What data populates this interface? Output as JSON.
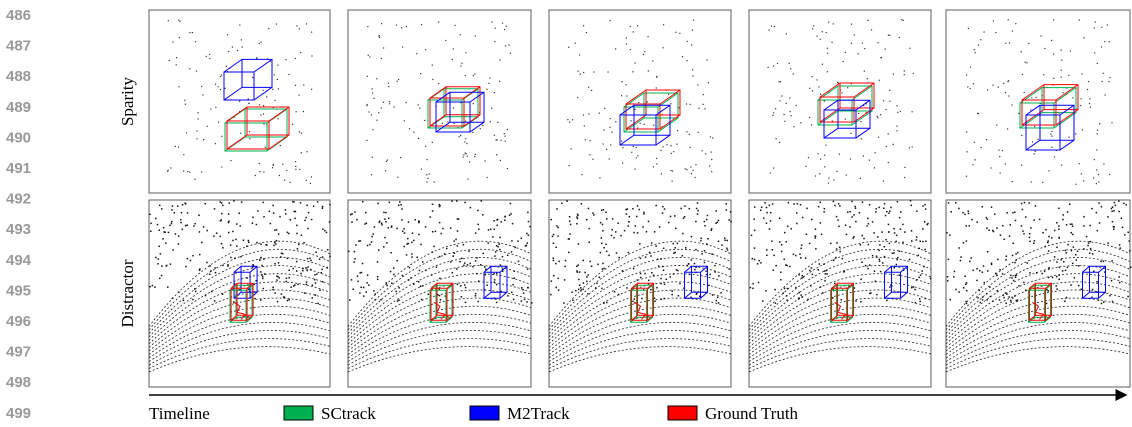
{
  "line_numbers": [
    "486",
    "487",
    "488",
    "489",
    "490",
    "491",
    "492",
    "493",
    "494",
    "495",
    "496",
    "497",
    "498",
    "499"
  ],
  "rows": [
    {
      "label": "Sparity"
    },
    {
      "label": "Distractor"
    }
  ],
  "timeline": "Timeline",
  "legend": [
    {
      "label": "SCtrack",
      "color": "#00b050"
    },
    {
      "label": "M2Track",
      "color": "#0000ff"
    },
    {
      "label": "Ground Truth",
      "color": "#ff0000"
    }
  ]
}
